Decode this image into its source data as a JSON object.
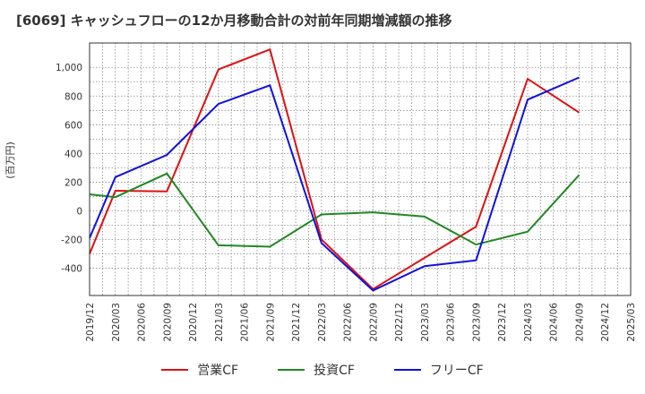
{
  "chart_data": {
    "type": "line",
    "title": "[6069]  キャッシュフローの12か月移動合計の対前年同期増減額の推移",
    "ylabel": "(百万円)",
    "xlabel": "",
    "ylim": [
      -590,
      1170
    ],
    "yticks": [
      -400,
      -200,
      0,
      200,
      400,
      600,
      800,
      1000
    ],
    "ytick_labels": [
      "-400",
      "-200",
      "0",
      "200",
      "400",
      "600",
      "800",
      "1,000"
    ],
    "categories": [
      "2019/12",
      "2020/03",
      "2020/06",
      "2020/09",
      "2020/12",
      "2021/03",
      "2021/06",
      "2021/09",
      "2021/12",
      "2022/03",
      "2022/06",
      "2022/09",
      "2022/12",
      "2023/03",
      "2023/06",
      "2023/09",
      "2023/12",
      "2024/03",
      "2024/06",
      "2024/09",
      "2024/12",
      "2025/03"
    ],
    "series": [
      {
        "name": "営業CF",
        "color": "#dd1111",
        "values": [
          -300,
          140,
          null,
          135,
          null,
          985,
          null,
          1125,
          null,
          -200,
          null,
          -545,
          null,
          null,
          null,
          -110,
          null,
          920,
          null,
          685,
          null,
          null
        ]
      },
      {
        "name": "投資CF",
        "color": "#228822",
        "values": [
          115,
          95,
          null,
          260,
          null,
          -240,
          null,
          -250,
          null,
          -25,
          null,
          -10,
          null,
          -40,
          null,
          -235,
          null,
          -145,
          null,
          250,
          null,
          null
        ]
      },
      {
        "name": "フリーCF",
        "color": "#1111dd",
        "values": [
          -190,
          235,
          null,
          390,
          null,
          745,
          null,
          875,
          null,
          -225,
          null,
          -555,
          null,
          -385,
          null,
          -345,
          null,
          775,
          null,
          930,
          null,
          null
        ]
      }
    ],
    "grid": true,
    "legend_position": "bottom"
  }
}
